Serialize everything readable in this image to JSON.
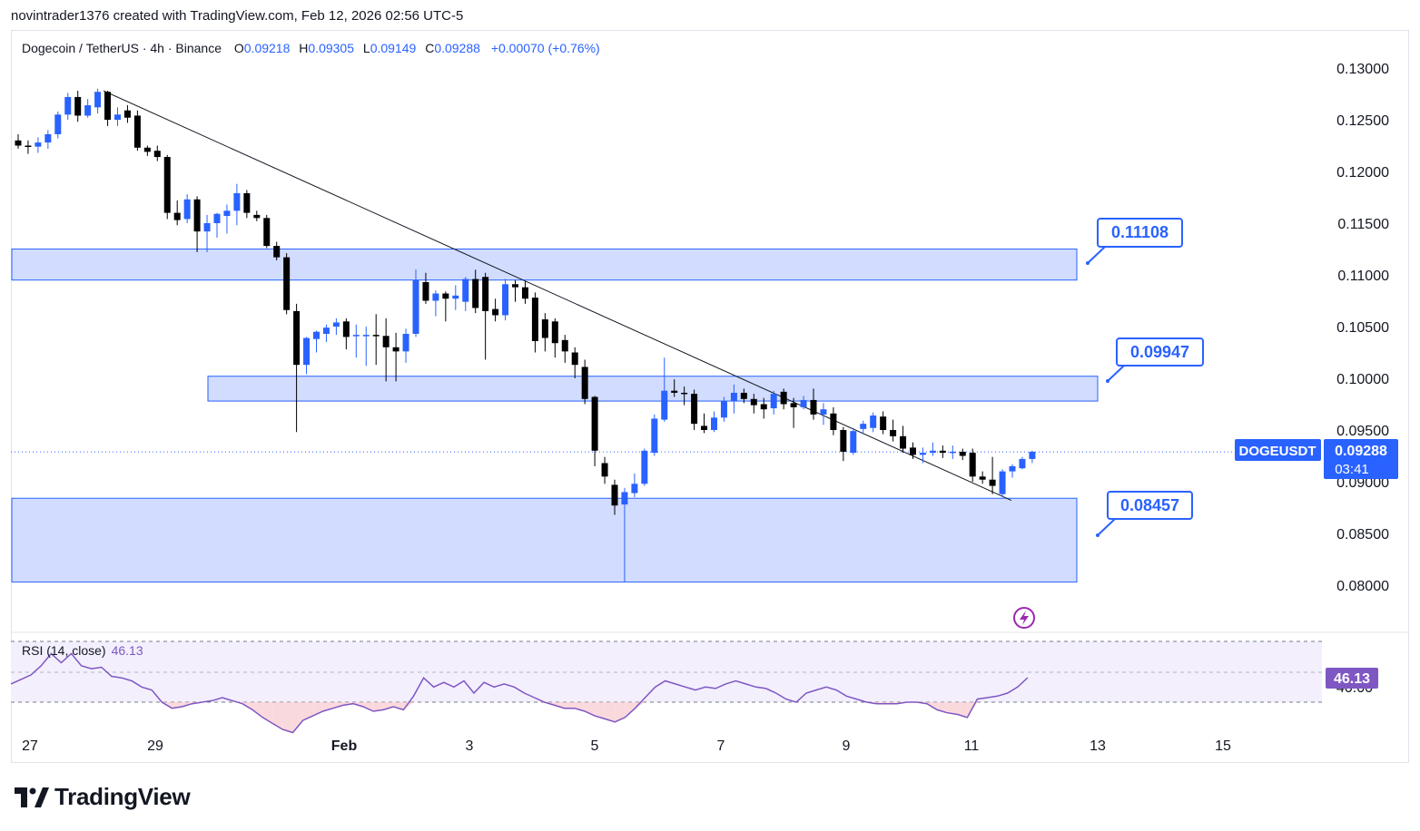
{
  "attribution": "novintrader1376 created with TradingView.com, Feb 12, 2026 02:56 UTC-5",
  "brand": "TradingView",
  "colors": {
    "up": "#2962ff",
    "down": "#000000",
    "zone": "#d1dcff",
    "zone_border": "#2962ff",
    "rsi": "#7e57c2",
    "rsi_band": "#f3effd"
  },
  "header": {
    "symbol": "Dogecoin / TetherUS · 4h · Binance",
    "o_label": "O",
    "o": "0.09218",
    "h_label": "H",
    "h": "0.09305",
    "l_label": "L",
    "l": "0.09149",
    "c_label": "C",
    "c": "0.09288",
    "change": "+0.00070 (+0.76%)"
  },
  "rsi": {
    "label": "RSI (14, close)",
    "value": "46.13",
    "badge": "46.13",
    "hidden_tick": "40.00"
  },
  "price_badge": {
    "symbol": "DOGEUSDT",
    "price": "0.09288",
    "countdown": "03:41"
  },
  "chart_data": {
    "type": "candlestick",
    "ylim": [
      0.0785,
      0.132
    ],
    "y_ticks": [
      "0.13000",
      "0.12500",
      "0.12000",
      "0.11500",
      "0.11000",
      "0.10500",
      "0.10000",
      "0.09500",
      "0.09000",
      "0.08500",
      "0.08000"
    ],
    "x_ticks": [
      "27",
      "29",
      "Feb",
      "3",
      "5",
      "7",
      "9",
      "11",
      "13",
      "15"
    ],
    "x_range_days": [
      0.0,
      21.5
    ],
    "last_price": 0.09288,
    "zones": [
      {
        "low": 0.1095,
        "high": 0.1125,
        "label": "0.11108"
      },
      {
        "low": 0.0978,
        "high": 0.1002,
        "label": "0.09947"
      },
      {
        "low": 0.0803,
        "high": 0.0884,
        "label": "0.08457"
      }
    ],
    "trendline": {
      "x1": 1.17,
      "y1": 0.1278,
      "x2": 15.62,
      "y2": 0.0882
    },
    "candles": [
      [
        0.0208,
        0.123,
        0.1236,
        0.1222,
        0.1225
      ],
      [
        0.0208,
        0.1225,
        0.123,
        0.1217,
        0.1224
      ],
      [
        0.0208,
        0.1224,
        0.1233,
        0.1218,
        0.1228
      ],
      [
        0.0208,
        0.1228,
        0.124,
        0.1222,
        0.1236
      ],
      [
        0.0208,
        0.1236,
        0.1258,
        0.1232,
        0.1255
      ],
      [
        0.0208,
        0.1255,
        0.1276,
        0.125,
        0.1272
      ],
      [
        0.0208,
        0.1272,
        0.1278,
        0.1248,
        0.1254
      ],
      [
        0.0208,
        0.1254,
        0.127,
        0.1252,
        0.1264
      ],
      [
        0.0208,
        0.1262,
        0.128,
        0.1256,
        0.1277
      ],
      [
        0.0208,
        0.1277,
        0.1278,
        0.1244,
        0.125
      ],
      [
        0.0208,
        0.125,
        0.1262,
        0.1244,
        0.1255
      ],
      [
        0.0208,
        0.1259,
        0.1264,
        0.1247,
        0.1252
      ],
      [
        0.0208,
        0.1254,
        0.1259,
        0.122,
        0.1223
      ],
      [
        0.0208,
        0.1223,
        0.1225,
        0.1215,
        0.1219
      ],
      [
        0.0208,
        0.122,
        0.1225,
        0.121,
        0.1214
      ],
      [
        0.0208,
        0.1214,
        0.1216,
        0.1154,
        0.116
      ],
      [
        0.0208,
        0.116,
        0.1172,
        0.1148,
        0.1153
      ],
      [
        0.0208,
        0.1154,
        0.1178,
        0.115,
        0.1173
      ],
      [
        0.0208,
        0.1173,
        0.1176,
        0.1122,
        0.1142
      ],
      [
        0.0208,
        0.1142,
        0.1158,
        0.1122,
        0.115
      ],
      [
        0.0208,
        0.115,
        0.116,
        0.1136,
        0.1159
      ],
      [
        0.0208,
        0.1157,
        0.1168,
        0.114,
        0.1162
      ],
      [
        0.0208,
        0.1162,
        0.1188,
        0.1148,
        0.1179
      ],
      [
        0.0208,
        0.1179,
        0.1182,
        0.1155,
        0.116
      ],
      [
        0.0208,
        0.1158,
        0.1162,
        0.1152,
        0.1155
      ],
      [
        0.0208,
        0.1155,
        0.1158,
        0.1126,
        0.1128
      ],
      [
        0.0208,
        0.1128,
        0.1132,
        0.1114,
        0.1117
      ],
      [
        0.0208,
        0.1117,
        0.1121,
        0.1062,
        0.1066
      ],
      [
        0.0208,
        0.1065,
        0.1072,
        0.0948,
        0.1013
      ],
      [
        0.0208,
        0.1013,
        0.104,
        0.1004,
        0.1039
      ],
      [
        0.0208,
        0.1038,
        0.1046,
        0.1025,
        0.1045
      ],
      [
        0.0208,
        0.1043,
        0.1052,
        0.1035,
        0.1049
      ],
      [
        0.0208,
        0.105,
        0.1058,
        0.1042,
        0.1054
      ],
      [
        0.0208,
        0.1055,
        0.1058,
        0.1028,
        0.104
      ],
      [
        0.0208,
        0.1041,
        0.1052,
        0.102,
        0.1042
      ],
      [
        0.0208,
        0.1042,
        0.105,
        0.1012,
        0.1042
      ],
      [
        0.0208,
        0.1042,
        0.1062,
        0.1013,
        0.1041
      ],
      [
        0.0208,
        0.1041,
        0.1058,
        0.0997,
        0.103
      ],
      [
        0.0208,
        0.103,
        0.1044,
        0.0997,
        0.1026
      ],
      [
        0.0208,
        0.1026,
        0.1048,
        0.1015,
        0.1043
      ],
      [
        0.0208,
        0.1043,
        0.1105,
        0.104,
        0.1095
      ],
      [
        0.0208,
        0.1093,
        0.1102,
        0.1072,
        0.1075
      ],
      [
        0.0208,
        0.1075,
        0.1085,
        0.106,
        0.1082
      ],
      [
        0.0208,
        0.1082,
        0.1084,
        0.1055,
        0.1077
      ],
      [
        0.0208,
        0.1077,
        0.109,
        0.1066,
        0.108
      ],
      [
        0.0208,
        0.1074,
        0.1098,
        0.1065,
        0.1096
      ],
      [
        0.0208,
        0.1096,
        0.1105,
        0.1063,
        0.1068
      ],
      [
        0.0208,
        0.1098,
        0.1102,
        0.1018,
        0.1065
      ],
      [
        0.0208,
        0.1067,
        0.1077,
        0.1055,
        0.1061
      ],
      [
        0.0208,
        0.1061,
        0.1096,
        0.1056,
        0.1091
      ],
      [
        0.0208,
        0.1091,
        0.1095,
        0.1074,
        0.1088
      ],
      [
        0.0208,
        0.1088,
        0.1094,
        0.1072,
        0.1077
      ],
      [
        0.0208,
        0.1078,
        0.1083,
        0.1025,
        0.1036
      ],
      [
        0.0208,
        0.1057,
        0.1063,
        0.1026,
        0.1039
      ],
      [
        0.0208,
        0.1055,
        0.1058,
        0.102,
        0.1034
      ],
      [
        0.0208,
        0.1037,
        0.1042,
        0.1015,
        0.1026
      ],
      [
        0.0208,
        0.1025,
        0.103,
        0.1,
        0.1013
      ],
      [
        0.0208,
        0.1011,
        0.1018,
        0.0975,
        0.098
      ],
      [
        0.0208,
        0.0982,
        0.0983,
        0.0915,
        0.093
      ],
      [
        0.0208,
        0.0918,
        0.0924,
        0.0898,
        0.0905
      ],
      [
        0.0208,
        0.0897,
        0.0902,
        0.0868,
        0.0877
      ],
      [
        0.0208,
        0.0878,
        0.0894,
        0.0803,
        0.089
      ],
      [
        0.0208,
        0.0889,
        0.0908,
        0.0885,
        0.0898
      ],
      [
        0.0208,
        0.0898,
        0.0932,
        0.0896,
        0.093
      ],
      [
        0.0208,
        0.0928,
        0.0965,
        0.0925,
        0.0961
      ],
      [
        0.0208,
        0.096,
        0.102,
        0.0958,
        0.0988
      ],
      [
        0.0208,
        0.0988,
        0.0999,
        0.0982,
        0.0986
      ],
      [
        0.0208,
        0.0986,
        0.0992,
        0.0974,
        0.0985
      ],
      [
        0.0208,
        0.0985,
        0.0989,
        0.095,
        0.0956
      ],
      [
        0.0208,
        0.0954,
        0.0966,
        0.0947,
        0.095
      ],
      [
        0.0208,
        0.095,
        0.0968,
        0.0948,
        0.0962
      ],
      [
        0.0208,
        0.0962,
        0.0982,
        0.0958,
        0.0978
      ],
      [
        0.0208,
        0.0978,
        0.0994,
        0.0966,
        0.0986
      ],
      [
        0.0208,
        0.0986,
        0.099,
        0.0976,
        0.098
      ],
      [
        0.0208,
        0.098,
        0.0985,
        0.0966,
        0.0974
      ],
      [
        0.0208,
        0.0975,
        0.0981,
        0.0961,
        0.097
      ],
      [
        0.0208,
        0.0971,
        0.0988,
        0.0965,
        0.0985
      ],
      [
        0.0208,
        0.0987,
        0.099,
        0.097,
        0.0975
      ],
      [
        0.0208,
        0.0976,
        0.0981,
        0.0952,
        0.0972
      ],
      [
        0.0208,
        0.0972,
        0.0983,
        0.097,
        0.0979
      ],
      [
        0.0208,
        0.0979,
        0.099,
        0.096,
        0.0965
      ],
      [
        0.0208,
        0.0965,
        0.0976,
        0.0955,
        0.097
      ],
      [
        0.0208,
        0.0966,
        0.0972,
        0.0945,
        0.095
      ],
      [
        0.0208,
        0.095,
        0.0953,
        0.092,
        0.0929
      ],
      [
        0.0208,
        0.0928,
        0.0952,
        0.0926,
        0.0949
      ],
      [
        0.0208,
        0.0951,
        0.0959,
        0.0946,
        0.0956
      ],
      [
        0.0208,
        0.0952,
        0.0967,
        0.0948,
        0.0964
      ],
      [
        0.0208,
        0.0963,
        0.0968,
        0.0946,
        0.095
      ],
      [
        0.0208,
        0.095,
        0.096,
        0.0939,
        0.0944
      ],
      [
        0.0208,
        0.0944,
        0.0954,
        0.0928,
        0.0932
      ],
      [
        0.0208,
        0.0933,
        0.0938,
        0.0922,
        0.0926
      ],
      [
        0.0208,
        0.0926,
        0.0933,
        0.0918,
        0.0928
      ],
      [
        0.0208,
        0.0928,
        0.0938,
        0.0925,
        0.093
      ],
      [
        0.0208,
        0.093,
        0.0935,
        0.0923,
        0.0928
      ],
      [
        0.0208,
        0.0928,
        0.0935,
        0.0922,
        0.0929
      ],
      [
        0.0208,
        0.0929,
        0.0932,
        0.0921,
        0.0925
      ],
      [
        0.0208,
        0.0928,
        0.0932,
        0.09,
        0.0905
      ],
      [
        0.0208,
        0.0905,
        0.091,
        0.0898,
        0.0902
      ],
      [
        0.0208,
        0.0902,
        0.0924,
        0.0888,
        0.0896
      ],
      [
        0.0208,
        0.0888,
        0.0912,
        0.0885,
        0.091
      ],
      [
        0.0208,
        0.091,
        0.0917,
        0.0904,
        0.0915
      ],
      [
        0.0208,
        0.0913,
        0.0924,
        0.0912,
        0.0922
      ],
      [
        0.0208,
        0.0922,
        0.093,
        0.0918,
        0.0929
      ]
    ],
    "rsi_series": [
      [
        0.0,
        42
      ],
      [
        0.14,
        45
      ],
      [
        0.28,
        48
      ],
      [
        0.42,
        54
      ],
      [
        0.56,
        62
      ],
      [
        0.7,
        56
      ],
      [
        0.84,
        62
      ],
      [
        0.98,
        54
      ],
      [
        1.12,
        52
      ],
      [
        1.26,
        53
      ],
      [
        1.4,
        47
      ],
      [
        1.54,
        46
      ],
      [
        1.68,
        44
      ],
      [
        1.82,
        40
      ],
      [
        1.96,
        38
      ],
      [
        2.1,
        30
      ],
      [
        2.24,
        26
      ],
      [
        2.38,
        27
      ],
      [
        2.52,
        29
      ],
      [
        2.66,
        30
      ],
      [
        2.8,
        31
      ],
      [
        2.94,
        33
      ],
      [
        3.08,
        31
      ],
      [
        3.22,
        29
      ],
      [
        3.36,
        25
      ],
      [
        3.5,
        20
      ],
      [
        3.64,
        16
      ],
      [
        3.78,
        12
      ],
      [
        3.92,
        10
      ],
      [
        4.06,
        18
      ],
      [
        4.2,
        21
      ],
      [
        4.34,
        24
      ],
      [
        4.48,
        26
      ],
      [
        4.62,
        28
      ],
      [
        4.76,
        29
      ],
      [
        4.9,
        27
      ],
      [
        5.04,
        24
      ],
      [
        5.18,
        25
      ],
      [
        5.32,
        27
      ],
      [
        5.46,
        25
      ],
      [
        5.6,
        34
      ],
      [
        5.74,
        46
      ],
      [
        5.88,
        40
      ],
      [
        6.02,
        43
      ],
      [
        6.16,
        40
      ],
      [
        6.3,
        44
      ],
      [
        6.44,
        36
      ],
      [
        6.58,
        43
      ],
      [
        6.72,
        40
      ],
      [
        6.86,
        42
      ],
      [
        7.0,
        40
      ],
      [
        7.14,
        36
      ],
      [
        7.28,
        33
      ],
      [
        7.42,
        30
      ],
      [
        7.56,
        28
      ],
      [
        7.7,
        26
      ],
      [
        7.84,
        26
      ],
      [
        7.98,
        24
      ],
      [
        8.12,
        21
      ],
      [
        8.26,
        19
      ],
      [
        8.4,
        17
      ],
      [
        8.54,
        20
      ],
      [
        8.68,
        26
      ],
      [
        8.82,
        33
      ],
      [
        8.96,
        40
      ],
      [
        9.1,
        44
      ],
      [
        9.24,
        42
      ],
      [
        9.38,
        40
      ],
      [
        9.52,
        38
      ],
      [
        9.66,
        40
      ],
      [
        9.8,
        39
      ],
      [
        9.94,
        42
      ],
      [
        10.08,
        44
      ],
      [
        10.22,
        42
      ],
      [
        10.36,
        40
      ],
      [
        10.5,
        39
      ],
      [
        10.64,
        36
      ],
      [
        10.78,
        32
      ],
      [
        10.92,
        30
      ],
      [
        11.06,
        36
      ],
      [
        11.2,
        38
      ],
      [
        11.34,
        40
      ],
      [
        11.48,
        38
      ],
      [
        11.62,
        34
      ],
      [
        11.76,
        32
      ],
      [
        11.9,
        30
      ],
      [
        12.04,
        29
      ],
      [
        12.18,
        29
      ],
      [
        12.32,
        29
      ],
      [
        12.46,
        30
      ],
      [
        12.6,
        30
      ],
      [
        12.74,
        29
      ],
      [
        12.88,
        25
      ],
      [
        13.02,
        23
      ],
      [
        13.16,
        22
      ],
      [
        13.3,
        20
      ],
      [
        13.44,
        32
      ],
      [
        13.58,
        33
      ],
      [
        13.72,
        34
      ],
      [
        13.86,
        36
      ],
      [
        14.0,
        40
      ],
      [
        14.14,
        46.13
      ]
    ]
  }
}
